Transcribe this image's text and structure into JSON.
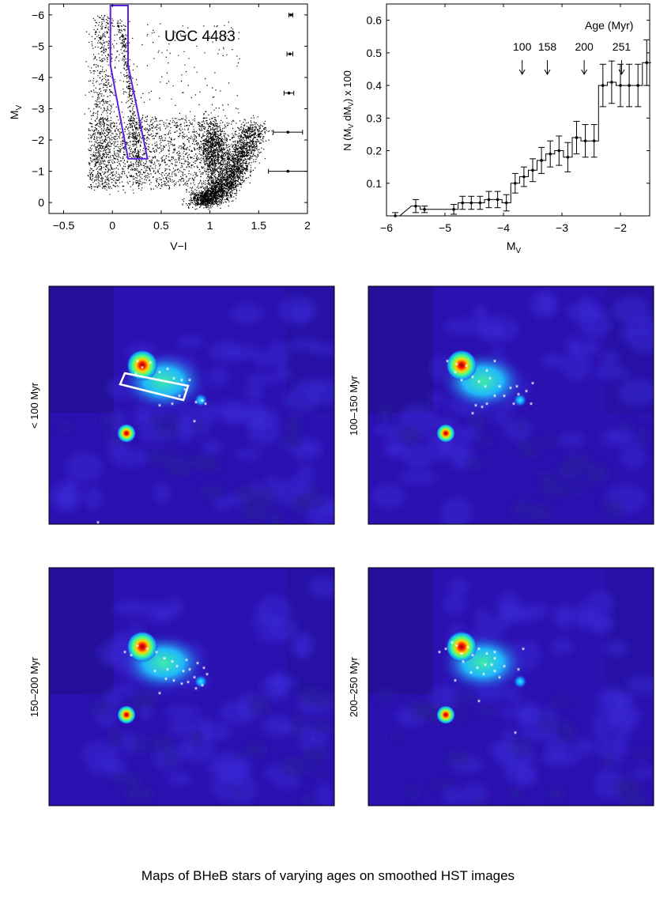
{
  "caption": "Maps of BHeB stars of varying ages on smoothed HST images",
  "colors": {
    "map_background": "#2c10b0",
    "cmd_box": "#5a22e0",
    "stars": "#ffffff",
    "axes": "#000000"
  },
  "chart_data": [
    {
      "type": "scatter",
      "panel": "color-magnitude diagram",
      "title": "UGC 4483",
      "xlabel": "V−I",
      "ylabel": "M",
      "ylabel_sub": "V",
      "xlim": [
        -0.65,
        2.0
      ],
      "ylim": [
        0.35,
        -6.35
      ],
      "y_inverted": true,
      "xticks": [
        -0.5,
        0,
        0.5,
        1,
        1.5,
        2
      ],
      "xtick_labels": [
        "−0.5",
        "0",
        "0.5",
        "1",
        "1.5",
        "2"
      ],
      "yticks": [
        -6,
        -5,
        -4,
        -3,
        -2,
        -1,
        0
      ],
      "ytick_labels": [
        "−6",
        "−5",
        "−4",
        "−3",
        "−2",
        "−1",
        "0"
      ],
      "selection_box": [
        [
          -0.02,
          -6.3
        ],
        [
          0.16,
          -6.3
        ],
        [
          0.16,
          -4.4
        ],
        [
          0.36,
          -1.4
        ],
        [
          0.16,
          -1.4
        ],
        [
          -0.02,
          -4.4
        ]
      ],
      "error_bars": [
        {
          "x": 1.83,
          "y": -6.0,
          "xerr": 0.02
        },
        {
          "x": 1.82,
          "y": -4.75,
          "xerr": 0.03
        },
        {
          "x": 1.81,
          "y": -3.5,
          "xerr": 0.05
        },
        {
          "x": 1.8,
          "y": -2.25,
          "xerr": 0.15
        },
        {
          "x": 1.8,
          "y": -1.0,
          "xerr": 0.2
        }
      ]
    },
    {
      "type": "line",
      "panel": "luminosity function",
      "style": "step",
      "xlabel": "M",
      "xlabel_sub": "V",
      "ylabel": "N (M_V dM_V) x 100",
      "xlim": [
        -6,
        -1.5
      ],
      "ylim": [
        0,
        0.65
      ],
      "xticks": [
        -6,
        -5,
        -4,
        -3,
        -2
      ],
      "xtick_labels": [
        "−6",
        "−5",
        "−4",
        "−3",
        "−2"
      ],
      "yticks": [
        0.1,
        0.2,
        0.3,
        0.4,
        0.5,
        0.6
      ],
      "ytick_labels": [
        "0.1",
        "0.2",
        "0.3",
        "0.4",
        "0.5",
        "0.6"
      ],
      "x": [
        -5.85,
        -5.5,
        -5.35,
        -4.85,
        -4.7,
        -4.55,
        -4.4,
        -4.25,
        -4.1,
        -3.95,
        -3.8,
        -3.65,
        -3.5,
        -3.35,
        -3.2,
        -3.05,
        -2.9,
        -2.75,
        -2.6,
        -2.45,
        -2.3,
        -2.15,
        -2.0,
        -1.85,
        -1.7,
        -1.55
      ],
      "values": [
        0.0,
        0.03,
        0.02,
        0.02,
        0.04,
        0.04,
        0.04,
        0.05,
        0.05,
        0.04,
        0.1,
        0.12,
        0.14,
        0.17,
        0.19,
        0.2,
        0.18,
        0.24,
        0.23,
        0.23,
        0.4,
        0.41,
        0.4,
        0.4,
        0.4,
        0.47
      ],
      "errors": [
        0.01,
        0.02,
        0.01,
        0.015,
        0.02,
        0.02,
        0.02,
        0.025,
        0.025,
        0.025,
        0.03,
        0.03,
        0.035,
        0.04,
        0.04,
        0.045,
        0.045,
        0.05,
        0.05,
        0.05,
        0.065,
        0.065,
        0.065,
        0.065,
        0.065,
        0.07
      ],
      "age_legend_title": "Age (Myr)",
      "age_markers": [
        {
          "label": "100",
          "x": -3.68
        },
        {
          "label": "158",
          "x": -3.25
        },
        {
          "label": "200",
          "x": -2.62
        },
        {
          "label": "251",
          "x": -1.98
        }
      ]
    }
  ],
  "maps": [
    {
      "label": "< 100 Myr"
    },
    {
      "label": "100–150 Myr"
    },
    {
      "label": "150–200 Myr"
    },
    {
      "label": "200–250 Myr"
    }
  ]
}
